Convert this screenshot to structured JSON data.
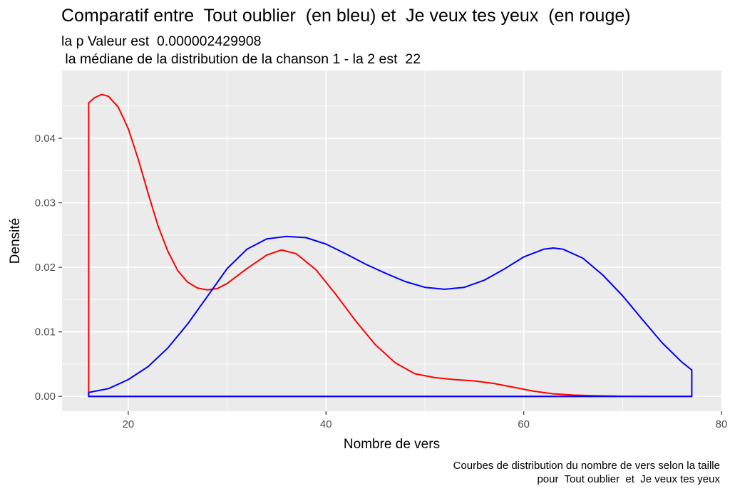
{
  "title": "Comparatif entre  Tout oublier  (en bleu) et  Je veux tes yeux  (en rouge)",
  "subtitle_line1": "la p Valeur est  0.000002429908",
  "subtitle_line2": " la médiane de la distribution de la chanson 1 - la 2 est  22",
  "caption_line1": "Courbes de distribution du nombre de vers selon la taille",
  "caption_line2": "pour  Tout oublier  et  Je veux tes yeux",
  "colors": {
    "panel": "#ebebeb",
    "grid": "#ffffff",
    "blue": "#0000ff",
    "red": "#ff0000"
  },
  "chart_data": {
    "type": "area",
    "xlabel": "Nombre de vers",
    "ylabel": "Densité",
    "xlim": [
      13.3,
      80
    ],
    "ylim": [
      -0.0023,
      0.0505
    ],
    "x_ticks": [
      20,
      40,
      60,
      80
    ],
    "y_ticks": [
      0.0,
      0.01,
      0.02,
      0.03,
      0.04
    ],
    "y_tick_labels": [
      "0.00",
      "0.01",
      "0.02",
      "0.03",
      "0.04"
    ],
    "grid": true,
    "series": [
      {
        "name": "Tout oublier",
        "color": "#0000ff",
        "x": [
          16,
          18,
          20,
          22,
          24,
          26,
          28,
          30,
          32,
          34,
          36,
          38,
          40,
          42,
          44,
          46,
          48,
          50,
          52,
          54,
          56,
          58,
          60,
          62,
          63,
          64,
          66,
          68,
          70,
          72,
          74,
          76,
          77
        ],
        "y": [
          0.0006,
          0.0012,
          0.0026,
          0.0046,
          0.0075,
          0.0112,
          0.0155,
          0.0198,
          0.0228,
          0.0244,
          0.0248,
          0.0246,
          0.0236,
          0.0221,
          0.0205,
          0.0191,
          0.0178,
          0.0169,
          0.0166,
          0.0169,
          0.018,
          0.0197,
          0.0216,
          0.0228,
          0.023,
          0.0228,
          0.0214,
          0.0188,
          0.0156,
          0.0119,
          0.0083,
          0.0053,
          0.0041
        ]
      },
      {
        "name": "Je veux tes yeux",
        "color": "#ff0000",
        "x": [
          16,
          16.6,
          17.3,
          18,
          19,
          20,
          21,
          22,
          23,
          24,
          25,
          26,
          27,
          28,
          29,
          30,
          32,
          34,
          35.5,
          37,
          39,
          41,
          43,
          45,
          47,
          49,
          51,
          53,
          55,
          57,
          59,
          61,
          63,
          65,
          67,
          70,
          73,
          77
        ],
        "y": [
          0.0455,
          0.0463,
          0.0468,
          0.0465,
          0.0448,
          0.0415,
          0.0368,
          0.0315,
          0.0265,
          0.0225,
          0.0195,
          0.0177,
          0.0168,
          0.0165,
          0.0167,
          0.0175,
          0.0198,
          0.0219,
          0.0227,
          0.0221,
          0.0196,
          0.0158,
          0.0117,
          0.008,
          0.0052,
          0.0035,
          0.0029,
          0.0026,
          0.0024,
          0.002,
          0.0014,
          0.0008,
          0.0004,
          0.0002,
          0.0001,
          2e-05,
          0.0,
          0.0
        ]
      }
    ]
  }
}
